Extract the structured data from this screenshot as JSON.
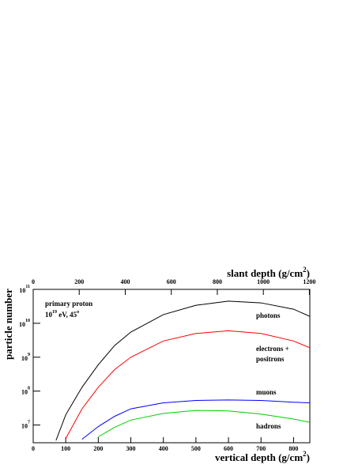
{
  "chart_data": {
    "type": "line",
    "y_label": "particle number",
    "x_label": {
      "text": "vertical depth (g/cm",
      "sup": "2",
      "end": ")"
    },
    "x2_label": {
      "text": "slant depth (g/cm",
      "sup": "2",
      "end": ")"
    },
    "annotation": {
      "line1": "primary proton",
      "base": "10",
      "exp": "19",
      "mid": " eV, 45",
      "deg": "o"
    },
    "x": [
      70,
      100,
      150,
      200,
      250,
      300,
      400,
      500,
      600,
      700,
      800,
      850
    ],
    "series": [
      {
        "name": [
          "photons"
        ],
        "color": "#000000",
        "values": [
          3500000,
          20000000,
          130000000,
          600000000,
          2200000000,
          5500000000,
          18000000000,
          34000000000,
          45000000000,
          40000000000,
          26000000000,
          16000000000
        ]
      },
      {
        "name": [
          "electrons +",
          "positrons"
        ],
        "color": "#ff0000",
        "values": [
          null,
          4000000,
          30000000,
          130000000,
          430000000,
          1000000000,
          3000000000,
          5000000000,
          6000000000,
          5000000000,
          3000000000,
          1900000000
        ]
      },
      {
        "name": [
          "muons"
        ],
        "color": "#0000ff",
        "values": [
          null,
          null,
          3800000,
          9000000,
          18000000,
          30000000,
          45000000,
          53000000,
          55000000,
          53000000,
          47000000,
          45000000
        ]
      },
      {
        "name": [
          "hadrons"
        ],
        "color": "#00cc00",
        "values": [
          null,
          null,
          null,
          4500000,
          8500000,
          14000000,
          22000000,
          27000000,
          26000000,
          21000000,
          15000000,
          12000000
        ]
      }
    ],
    "xlim": [
      0,
      850
    ],
    "xticks": [
      0,
      100,
      200,
      300,
      400,
      500,
      600,
      700,
      800
    ],
    "x2lim": [
      0,
      1202
    ],
    "x2ticks": [
      0,
      200,
      400,
      600,
      800,
      1000,
      1200
    ],
    "ylim": [
      3000000,
      100000000000
    ],
    "log_y": true,
    "yticks": [
      {
        "value": 10000000,
        "label": "10",
        "exp": "7"
      },
      {
        "value": 100000000,
        "label": "10",
        "exp": "8"
      },
      {
        "value": 1000000000,
        "label": "10",
        "exp": "9"
      },
      {
        "value": 10000000000,
        "label": "10",
        "exp": "10"
      },
      {
        "value": 100000000000,
        "label": "10",
        "exp": "11"
      }
    ]
  }
}
